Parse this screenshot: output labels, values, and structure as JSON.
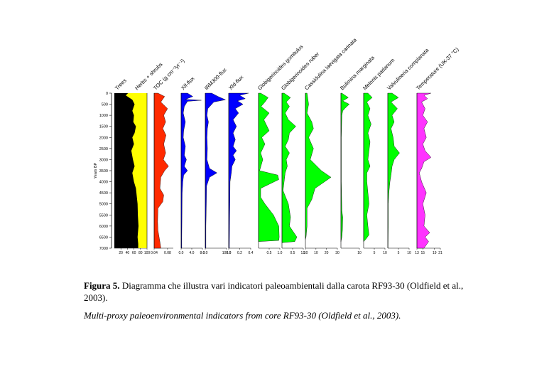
{
  "figure": {
    "y_axis_label": "Years BP",
    "y_ticks": [
      0,
      500,
      1000,
      1500,
      2000,
      2500,
      3000,
      3500,
      4000,
      4500,
      5000,
      5500,
      6000,
      6500,
      7000
    ],
    "y_max": 7000,
    "panels": [
      {
        "id": "trees-herbs",
        "labels": [
          "Trees",
          "Herbs + shrubs"
        ],
        "ticks": [
          "20",
          "40",
          "60",
          "80",
          "100"
        ],
        "tick_fracs": [
          0.2,
          0.4,
          0.6,
          0.8,
          1.0
        ]
      },
      {
        "id": "toc",
        "labels": [
          "TOC (g cm⁻²yr⁻¹)"
        ],
        "ticks": [
          "0.04",
          "0.08"
        ],
        "tick_fracs": [
          0.0,
          0.7
        ]
      },
      {
        "id": "xlf",
        "labels": [
          "Xlf-flux"
        ],
        "ticks": [
          "0.0",
          "4.0",
          "8.0"
        ],
        "tick_fracs": [
          0.0,
          0.5,
          1.0
        ]
      },
      {
        "id": "irm",
        "labels": [
          "IRM300-flux"
        ],
        "ticks": [
          "0.0",
          "100.0"
        ],
        "tick_fracs": [
          0.0,
          1.0
        ]
      },
      {
        "id": "xfd",
        "labels": [
          "Xfd-flux"
        ],
        "ticks": [
          "0.0",
          "0.2",
          "0.4"
        ],
        "tick_fracs": [
          0.0,
          0.5,
          1.0
        ]
      },
      {
        "id": "gglom",
        "labels": [
          "Globigerinoides gomitulus"
        ],
        "ticks": [
          "0.5",
          "1.0"
        ],
        "tick_fracs": [
          0.5,
          1.0
        ]
      },
      {
        "id": "gruber",
        "labels": [
          "Globigerinoides ruber"
        ],
        "ticks": [
          "0.5",
          "1.0"
        ],
        "tick_fracs": [
          0.5,
          1.0
        ]
      },
      {
        "id": "cassid",
        "labels": [
          "Cassidulina laevigata carinata"
        ],
        "ticks": [
          "1.0",
          "10",
          "20",
          "30"
        ],
        "tick_fracs": [
          0.0,
          0.33,
          0.66,
          1.0
        ]
      },
      {
        "id": "bulimina",
        "labels": [
          "Bulimina marginata"
        ],
        "ticks": [
          "10"
        ],
        "tick_fracs": [
          1.0
        ]
      },
      {
        "id": "melonis",
        "labels": [
          "Melonis padanum"
        ],
        "ticks": [
          "5",
          "10"
        ],
        "tick_fracs": [
          0.5,
          1.0
        ]
      },
      {
        "id": "valvul",
        "labels": [
          "Valvulineria complanata"
        ],
        "ticks": [
          "5",
          "10"
        ],
        "tick_fracs": [
          0.5,
          1.0
        ]
      },
      {
        "id": "temp",
        "labels": [
          "Temperature (UK-37 °C)"
        ],
        "ticks": [
          "13",
          "15",
          "19",
          "21"
        ],
        "tick_fracs": [
          0.0,
          0.25,
          0.75,
          1.0
        ]
      }
    ],
    "colors": {
      "trees": "#000000",
      "herbs": "#ffff00",
      "toc": "#ff2a00",
      "magnetic": "#0000ff",
      "forams": "#00ff00",
      "temperature": "#ff33ff"
    }
  },
  "caption": {
    "label": "Figura 5.",
    "italian": "Diagramma che illustra vari indicatori paleoambientali dalla carota RF93-30 (Oldfield et al., 2003).",
    "english": "Multi-proxy paleoenvironmental indicators from core RF93-30 (Oldfield et al., 2003)."
  }
}
